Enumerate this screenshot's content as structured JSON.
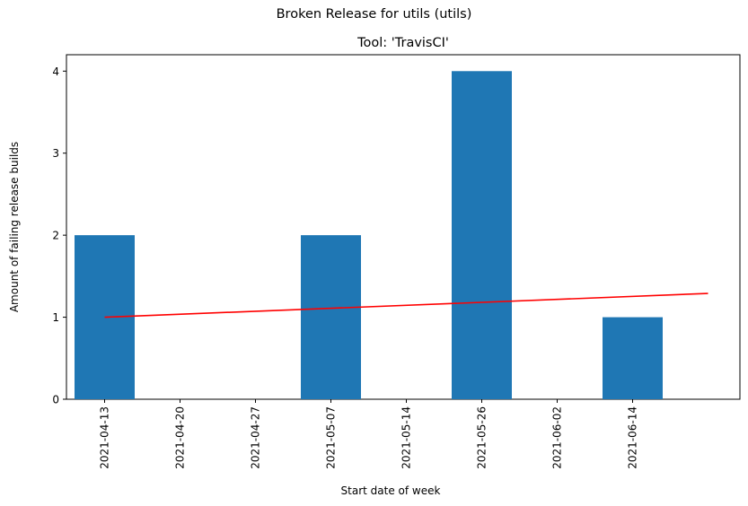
{
  "suptitle": "Broken Release for utils (utils)",
  "chart_data": {
    "type": "bar",
    "title": "Tool: 'TravisCI'",
    "xlabel": "Start date of week",
    "ylabel": "Amount of failing release builds",
    "categories": [
      "2021-04-13",
      "2021-04-20",
      "2021-04-27",
      "2021-05-07",
      "2021-05-14",
      "2021-05-26",
      "2021-06-02",
      "2021-06-14"
    ],
    "values": [
      2,
      0,
      0,
      2,
      0,
      4,
      0,
      1
    ],
    "ylim": [
      0,
      4.2
    ],
    "yticks": [
      0,
      1,
      2,
      3,
      4
    ],
    "bar_color": "#1f77b4",
    "trend": {
      "color": "#ff0000",
      "x_range": [
        0,
        8
      ],
      "y_start": 1.0,
      "y_end": 1.29
    },
    "grid": false,
    "legend": "none"
  }
}
